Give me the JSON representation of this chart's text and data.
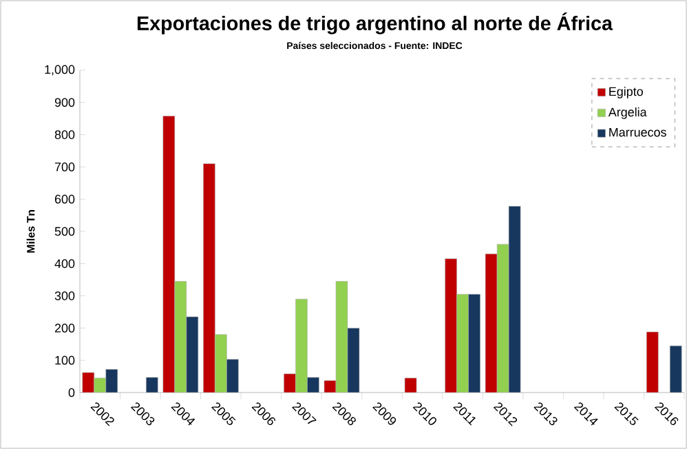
{
  "chart_data": {
    "type": "bar",
    "title": "Exportaciones de trigo argentino al norte de África",
    "subtitle": "Países seleccionados - Fuente: INDEC",
    "ylabel": "Miles Tn",
    "categories": [
      "2002",
      "2003",
      "2004",
      "2005",
      "2006",
      "2007",
      "2008",
      "2009",
      "2010",
      "2011",
      "2012",
      "2013",
      "2014",
      "2015",
      "2016"
    ],
    "series": [
      {
        "name": "Egipto",
        "color": "#c00000",
        "values": [
          62,
          null,
          858,
          710,
          null,
          58,
          37,
          null,
          45,
          415,
          430,
          null,
          null,
          null,
          188
        ]
      },
      {
        "name": "Argelia",
        "color": "#92d050",
        "values": [
          45,
          null,
          345,
          180,
          null,
          290,
          345,
          null,
          null,
          305,
          460,
          null,
          null,
          null,
          null
        ]
      },
      {
        "name": "Marruecos",
        "color": "#17375e",
        "values": [
          72,
          47,
          235,
          103,
          null,
          47,
          200,
          null,
          null,
          305,
          578,
          null,
          null,
          null,
          145
        ]
      }
    ],
    "ylim": [
      0,
      1000
    ],
    "yticks": [
      0,
      100,
      200,
      300,
      400,
      500,
      600,
      700,
      800,
      900,
      {
        "value": 1000,
        "label": "1,000"
      }
    ],
    "legend": "top right",
    "grid": false
  }
}
